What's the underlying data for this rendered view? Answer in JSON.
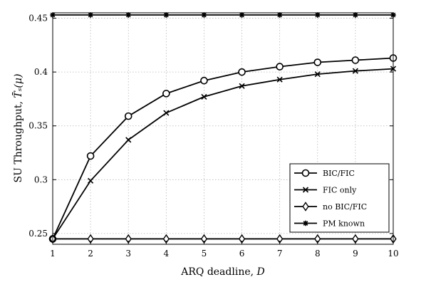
{
  "chart_data": {
    "type": "line",
    "xlabel_text": "ARQ deadline,",
    "xlabel_var": "D",
    "ylabel_text": "SU Throughput,",
    "ylabel_var": "T̄ₛ(μ)",
    "x": [
      1,
      2,
      3,
      4,
      5,
      6,
      7,
      8,
      9,
      10
    ],
    "xlim": [
      1,
      10
    ],
    "ylim": [
      0.24,
      0.455
    ],
    "xticks": [
      1,
      2,
      3,
      4,
      5,
      6,
      7,
      8,
      9,
      10
    ],
    "xtick_labels": [
      "1",
      "2",
      "3",
      "4",
      "5",
      "6",
      "7",
      "8",
      "9",
      "10"
    ],
    "yticks": [
      0.25,
      0.3,
      0.35,
      0.4,
      0.45
    ],
    "ytick_labels": [
      "0.25",
      "0.3",
      "0.35",
      "0.4",
      "0.45"
    ],
    "grid": true,
    "legend_position": "lower-right",
    "series": [
      {
        "name": "BIC/FIC",
        "marker": "circle",
        "values": [
          0.245,
          0.322,
          0.359,
          0.38,
          0.392,
          0.4,
          0.405,
          0.409,
          0.411,
          0.413
        ]
      },
      {
        "name": "FIC only",
        "marker": "x",
        "values": [
          0.245,
          0.299,
          0.337,
          0.362,
          0.377,
          0.387,
          0.393,
          0.398,
          0.401,
          0.403
        ]
      },
      {
        "name": "no BIC/FIC",
        "marker": "diamond",
        "values": [
          0.245,
          0.245,
          0.245,
          0.245,
          0.245,
          0.245,
          0.245,
          0.245,
          0.245,
          0.245
        ]
      },
      {
        "name": "PM known",
        "marker": "star",
        "values": [
          0.453,
          0.453,
          0.453,
          0.453,
          0.453,
          0.453,
          0.453,
          0.453,
          0.453,
          0.453
        ]
      }
    ]
  }
}
